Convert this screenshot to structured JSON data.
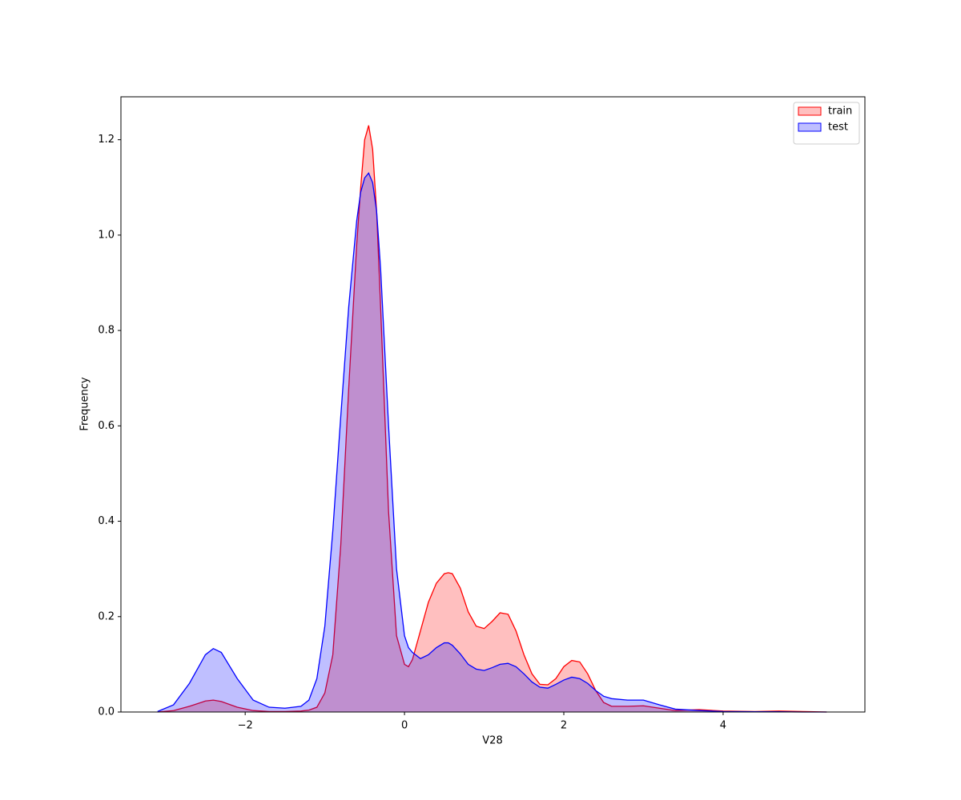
{
  "chart_data": {
    "type": "kde",
    "xlabel": "V28",
    "ylabel": "Frequency",
    "x": [
      -3.1,
      -2.9,
      -2.7,
      -2.5,
      -2.4,
      -2.3,
      -2.1,
      -1.9,
      -1.7,
      -1.5,
      -1.3,
      -1.2,
      -1.1,
      -1.0,
      -0.9,
      -0.8,
      -0.7,
      -0.6,
      -0.55,
      -0.5,
      -0.45,
      -0.4,
      -0.35,
      -0.3,
      -0.2,
      -0.1,
      0.0,
      0.05,
      0.1,
      0.2,
      0.3,
      0.4,
      0.5,
      0.55,
      0.6,
      0.7,
      0.8,
      0.9,
      1.0,
      1.1,
      1.2,
      1.3,
      1.4,
      1.5,
      1.6,
      1.7,
      1.8,
      1.9,
      2.0,
      2.1,
      2.2,
      2.3,
      2.4,
      2.5,
      2.6,
      2.8,
      3.0,
      3.2,
      3.4,
      3.7,
      4.0,
      4.4,
      4.7,
      5.0,
      5.3
    ],
    "series": [
      {
        "name": "train",
        "color": "red",
        "values": [
          0,
          0.003,
          0.012,
          0.023,
          0.025,
          0.022,
          0.01,
          0.003,
          0.001,
          0.001,
          0.002,
          0.004,
          0.01,
          0.04,
          0.12,
          0.35,
          0.68,
          0.98,
          1.1,
          1.2,
          1.23,
          1.18,
          1.05,
          0.85,
          0.42,
          0.16,
          0.1,
          0.095,
          0.11,
          0.17,
          0.23,
          0.27,
          0.29,
          0.292,
          0.29,
          0.26,
          0.21,
          0.18,
          0.175,
          0.19,
          0.208,
          0.205,
          0.17,
          0.12,
          0.08,
          0.058,
          0.057,
          0.07,
          0.095,
          0.108,
          0.105,
          0.08,
          0.045,
          0.02,
          0.012,
          0.012,
          0.013,
          0.008,
          0.003,
          0.005,
          0.002,
          0.001,
          0.002,
          0.001,
          0
        ]
      },
      {
        "name": "test",
        "color": "blue",
        "values": [
          0.001,
          0.015,
          0.06,
          0.12,
          0.133,
          0.125,
          0.07,
          0.025,
          0.01,
          0.008,
          0.012,
          0.025,
          0.07,
          0.18,
          0.38,
          0.62,
          0.85,
          1.03,
          1.09,
          1.12,
          1.13,
          1.11,
          1.05,
          0.93,
          0.6,
          0.3,
          0.16,
          0.135,
          0.125,
          0.112,
          0.12,
          0.135,
          0.145,
          0.145,
          0.14,
          0.122,
          0.1,
          0.09,
          0.087,
          0.093,
          0.1,
          0.102,
          0.095,
          0.08,
          0.063,
          0.052,
          0.05,
          0.058,
          0.067,
          0.073,
          0.07,
          0.06,
          0.045,
          0.033,
          0.028,
          0.025,
          0.025,
          0.015,
          0.006,
          0.003,
          0.001,
          0.0005,
          0.0005,
          0,
          0
        ]
      }
    ],
    "fill_alpha": 0.25,
    "xlim": [
      -3.56,
      5.78
    ],
    "xticks": [
      {
        "value": -2,
        "label": "−2"
      },
      0,
      2,
      4
    ],
    "ylim": [
      0,
      1.29
    ],
    "yticks": [
      {
        "value": 0,
        "label": "0.0"
      },
      0.2,
      0.4,
      0.6,
      0.8,
      {
        "value": 1,
        "label": "1.0"
      },
      1.2
    ],
    "grid": false,
    "legend": "upper right"
  }
}
